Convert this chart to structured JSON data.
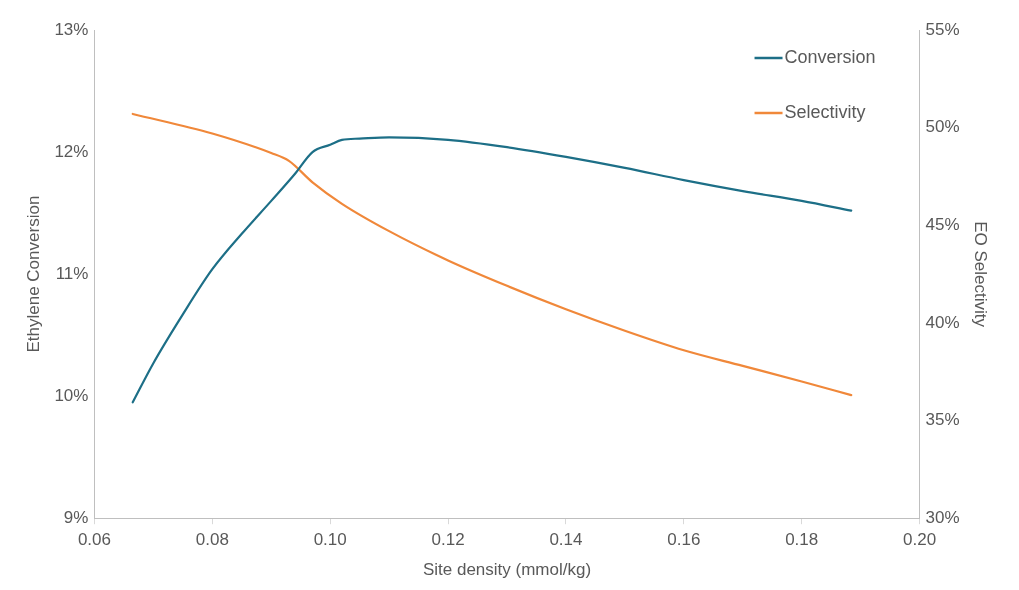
{
  "chart_data": {
    "type": "line",
    "xlabel": "Site density (mmol/kg)",
    "ylabel": "Ethylene Conversion",
    "y2label": "EO Selectivity",
    "xlim": [
      0.06,
      0.2
    ],
    "xticks": [
      {
        "value": 0.06,
        "label": "0.06"
      },
      {
        "value": 0.08,
        "label": "0.08"
      },
      {
        "value": 0.1,
        "label": "0.10"
      },
      {
        "value": 0.12,
        "label": "0.12"
      },
      {
        "value": 0.14,
        "label": "0.14"
      },
      {
        "value": 0.16,
        "label": "0.16"
      },
      {
        "value": 0.18,
        "label": "0.18"
      },
      {
        "value": 0.2,
        "label": "0.20"
      }
    ],
    "ylim": [
      9,
      13
    ],
    "yticks": [
      {
        "value": 9,
        "label": "9%"
      },
      {
        "value": 10,
        "label": "10%"
      },
      {
        "value": 11,
        "label": "11%"
      },
      {
        "value": 12,
        "label": "12%"
      },
      {
        "value": 13,
        "label": "13%"
      }
    ],
    "y2lim": [
      30,
      55
    ],
    "y2ticks": [
      {
        "value": 30,
        "label": "30%"
      },
      {
        "value": 35,
        "label": "35%"
      },
      {
        "value": 40,
        "label": "40%"
      },
      {
        "value": 45,
        "label": "45%"
      },
      {
        "value": 50,
        "label": "50%"
      },
      {
        "value": 55,
        "label": "55%"
      }
    ],
    "grid": false,
    "legend": "top right",
    "marker": "none",
    "line_style": "solid",
    "series": [
      {
        "name": "Conversion",
        "color": "#1d6f87",
        "axis": "y",
        "x": [
          0.0665,
          0.07,
          0.075,
          0.08,
          0.085,
          0.09,
          0.094,
          0.097,
          0.1,
          0.102,
          0.105,
          0.11,
          0.12,
          0.13,
          0.14,
          0.15,
          0.16,
          0.17,
          0.18,
          0.1884
        ],
        "values": [
          9.95,
          10.27,
          10.67,
          11.04,
          11.33,
          11.6,
          11.82,
          12.0,
          12.06,
          12.1,
          12.11,
          12.12,
          12.1,
          12.04,
          11.96,
          11.87,
          11.77,
          11.68,
          11.6,
          11.52
        ]
      },
      {
        "name": "Selectivity",
        "color": "#f0883a",
        "axis": "y2",
        "x": [
          0.0665,
          0.08,
          0.09,
          0.093,
          0.097,
          0.102,
          0.11,
          0.12,
          0.13,
          0.14,
          0.15,
          0.16,
          0.17,
          0.18,
          0.1884
        ],
        "values": [
          50.7,
          49.7,
          48.7,
          48.3,
          47.2,
          46.1,
          44.7,
          43.2,
          41.9,
          40.7,
          39.6,
          38.6,
          37.8,
          37.0,
          36.3
        ]
      }
    ]
  }
}
